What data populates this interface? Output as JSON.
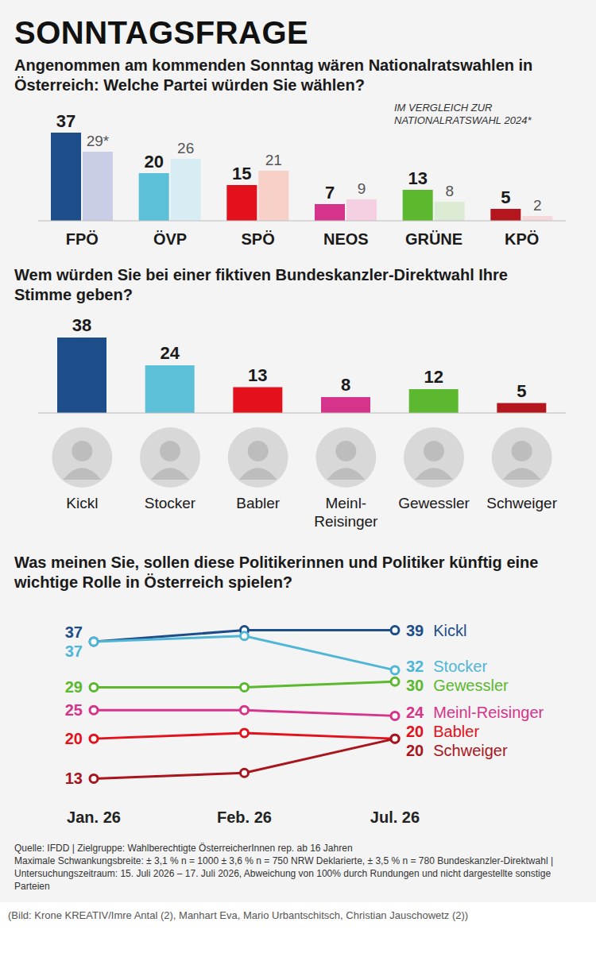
{
  "title": "SONNTAGSFRAGE",
  "chart_data": [
    {
      "type": "bar",
      "title": "Angenommen am kommenden Sonntag wären Nationalratswahlen in Österreich: Welche Partei würden Sie wählen?",
      "categories": [
        "FPÖ",
        "ÖVP",
        "SPÖ",
        "NEOS",
        "GRÜNE",
        "KPÖ"
      ],
      "ylim": [
        0,
        40
      ],
      "tick_labels": "x",
      "data_labels": true,
      "legend": "upper right",
      "series": [
        {
          "colors": [
            "#1d4e89",
            "#5bc0d8",
            "#e3111b",
            "#d6338a",
            "#5cb82e",
            "#b5161d"
          ],
          "values": [
            37,
            20,
            15,
            7,
            13,
            5
          ]
        },
        {
          "name": "IM VERGLEICH ZUR NATIONALRATSWAHL 2024*",
          "colors": [
            "#c9cde6",
            "#d8edf3",
            "#f7d0c7",
            "#f5d0e3",
            "#dcebd4",
            "#f6d8da"
          ],
          "values": [
            29,
            26,
            21,
            9,
            8,
            2
          ],
          "value_labels": [
            "29*",
            "26",
            "21",
            "9",
            "8",
            "2"
          ]
        }
      ]
    },
    {
      "type": "bar",
      "title": "Wem würden Sie bei einer fiktiven Bundeskanzler-Direktwahl Ihre Stimme geben?",
      "categories": [
        "Kickl",
        "Stocker",
        "Babler",
        "Meinl-Reisinger",
        "Gewessler",
        "Schweiger"
      ],
      "values": [
        38,
        24,
        13,
        8,
        12,
        5
      ],
      "colors": [
        "#1d4e89",
        "#5bc0d8",
        "#e3111b",
        "#d6338a",
        "#5cb82e",
        "#b5161d"
      ],
      "ylim": [
        0,
        40
      ],
      "tick_labels": "x",
      "data_labels": true
    },
    {
      "type": "line",
      "title": "Was meinen Sie, sollen diese Politikerinnen und Politiker künftig eine wichtige Rolle in Österreich spielen?",
      "categories": [
        "Jan. 26",
        "Feb. 26",
        "Jul. 26"
      ],
      "ylim": [
        10,
        42
      ],
      "tick_labels": "x",
      "marker": "circle",
      "series": [
        {
          "name": "Kickl",
          "color": "#1d4e89",
          "values": [
            37,
            39,
            39
          ],
          "value_labels": [
            "37",
            null,
            "39"
          ]
        },
        {
          "name": "Stocker",
          "color": "#4fb6d6",
          "values": [
            37,
            38,
            32
          ],
          "value_labels": [
            "37",
            null,
            "32"
          ]
        },
        {
          "name": "Gewessler",
          "color": "#5cb82e",
          "values": [
            29,
            29,
            30
          ],
          "value_labels": [
            "29",
            null,
            "30"
          ]
        },
        {
          "name": "Meinl-Reisinger",
          "color": "#d6338a",
          "values": [
            25,
            25,
            24
          ],
          "value_labels": [
            "25",
            null,
            "24"
          ]
        },
        {
          "name": "Babler",
          "color": "#e3111b",
          "values": [
            20,
            21,
            20
          ],
          "value_labels": [
            "20",
            null,
            "20"
          ]
        },
        {
          "name": "Schweiger",
          "color": "#a8151c",
          "values": [
            13,
            14,
            20
          ],
          "value_labels": [
            "13",
            null,
            "20"
          ]
        }
      ]
    }
  ],
  "source": "Quelle: IFDD | Zielgruppe: Wahlberechtigte ÖsterreicherInnen rep. ab 16 Jahren",
  "note": "Maximale Schwankungsbreite: ± 3,1 % n = 1000 ± 3,6 % n = 750 NRW Deklarierte, ± 3,5 % n = 780 Bundeskanzler-Direktwahl | Untersuchungszeitraum: 15. Juli 2026 – 17. Juli 2026, Abweichung von 100% durch Rundungen und nicht dargestellte sonstige Parteien",
  "caption": "(Bild: Krone KREATIV/Imre Antal (2), Manhart Eva, Mario Urbantschitsch, Christian Jauschowetz (2))"
}
